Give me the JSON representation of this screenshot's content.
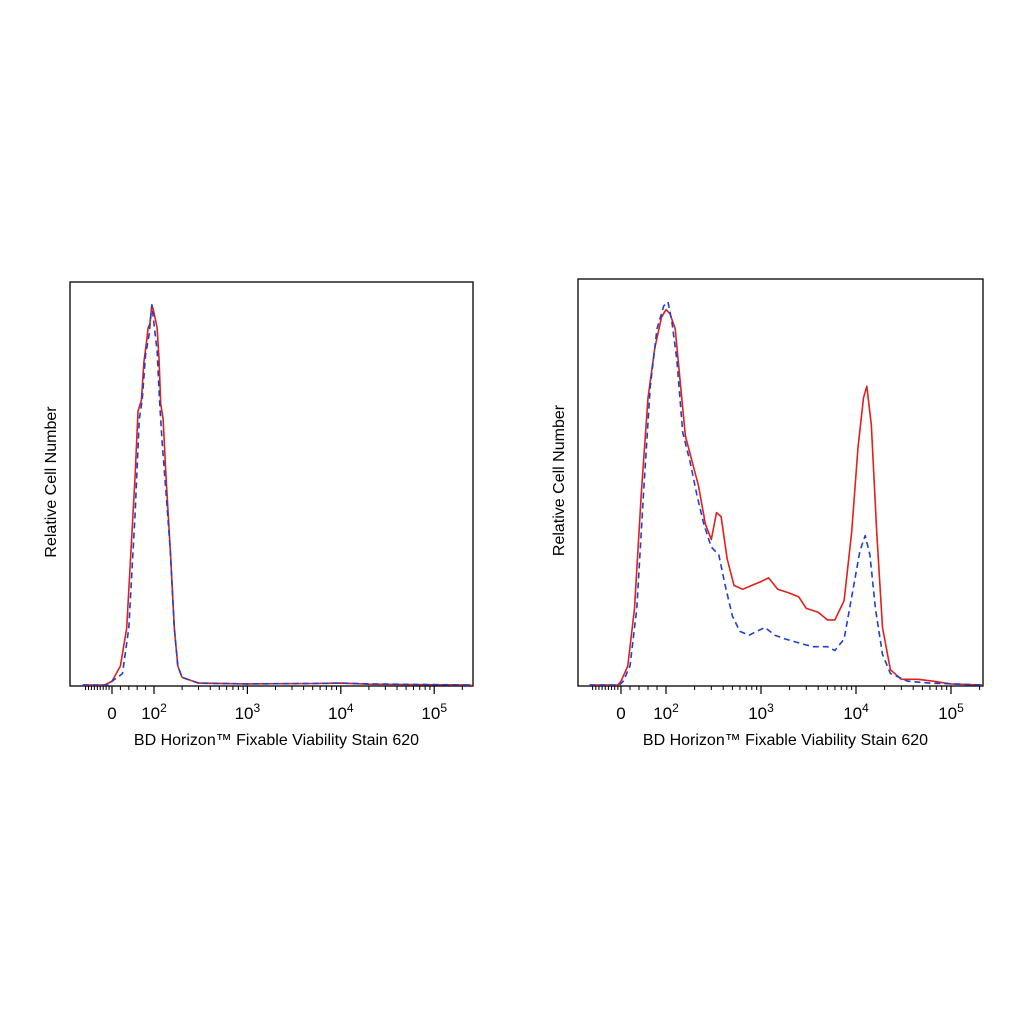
{
  "chart_data": [
    {
      "type": "line",
      "title": "",
      "xlabel": "BD Horizon™ Fixable Viability Stain 620",
      "ylabel": "Relative Cell Number",
      "x_scale": "biexponential",
      "xlim": [
        -200,
        250000
      ],
      "ylim": [
        0,
        1
      ],
      "grid": false,
      "legend": "none",
      "x_tick_labels": [
        {
          "value": 0,
          "base": "0",
          "exp": ""
        },
        {
          "value": 100,
          "base": "10",
          "exp": "2"
        },
        {
          "value": 1000,
          "base": "10",
          "exp": "3"
        },
        {
          "value": 10000,
          "base": "10",
          "exp": "4"
        },
        {
          "value": 100000,
          "base": "10",
          "exp": "5"
        }
      ],
      "series": [
        {
          "color": "#e0201b",
          "dash": "solid",
          "points": [
            [
              -200,
              0
            ],
            [
              -50,
              0
            ],
            [
              0,
              0.01
            ],
            [
              20,
              0.05
            ],
            [
              35,
              0.15
            ],
            [
              45,
              0.35
            ],
            [
              55,
              0.55
            ],
            [
              62,
              0.72
            ],
            [
              70,
              0.75
            ],
            [
              76,
              0.85
            ],
            [
              82,
              0.9
            ],
            [
              86,
              0.94
            ],
            [
              90,
              0.95
            ],
            [
              95,
              1.0
            ],
            [
              100,
              0.98
            ],
            [
              108,
              0.94
            ],
            [
              113,
              0.86
            ],
            [
              118,
              0.74
            ],
            [
              125,
              0.7
            ],
            [
              135,
              0.54
            ],
            [
              150,
              0.35
            ],
            [
              165,
              0.15
            ],
            [
              180,
              0.05
            ],
            [
              200,
              0.02
            ],
            [
              300,
              0.005
            ],
            [
              1000,
              0.003
            ],
            [
              5000,
              0.004
            ],
            [
              10000,
              0.005
            ],
            [
              20000,
              0.002
            ],
            [
              250000,
              0
            ]
          ]
        },
        {
          "color": "#1f3fcf",
          "dash": "dashed",
          "points": [
            [
              -200,
              0
            ],
            [
              -20,
              0
            ],
            [
              0,
              0.01
            ],
            [
              25,
              0.03
            ],
            [
              40,
              0.15
            ],
            [
              55,
              0.45
            ],
            [
              65,
              0.7
            ],
            [
              72,
              0.75
            ],
            [
              80,
              0.87
            ],
            [
              88,
              0.92
            ],
            [
              95,
              1.0
            ],
            [
              100,
              0.95
            ],
            [
              108,
              0.88
            ],
            [
              114,
              0.76
            ],
            [
              122,
              0.64
            ],
            [
              135,
              0.5
            ],
            [
              150,
              0.35
            ],
            [
              165,
              0.15
            ],
            [
              180,
              0.05
            ],
            [
              200,
              0.02
            ],
            [
              300,
              0.005
            ],
            [
              1000,
              0.003
            ],
            [
              5000,
              0.004
            ],
            [
              10000,
              0.005
            ],
            [
              20000,
              0.003
            ],
            [
              250000,
              0
            ]
          ]
        }
      ]
    },
    {
      "type": "line",
      "title": "",
      "xlabel": "BD Horizon™ Fixable Viability Stain 620",
      "ylabel": "Relative Cell Number",
      "x_scale": "biexponential",
      "xlim": [
        -200,
        250000
      ],
      "ylim": [
        0,
        1
      ],
      "grid": false,
      "legend": "none",
      "x_tick_labels": [
        {
          "value": 0,
          "base": "0",
          "exp": ""
        },
        {
          "value": 100,
          "base": "10",
          "exp": "2"
        },
        {
          "value": 1000,
          "base": "10",
          "exp": "3"
        },
        {
          "value": 10000,
          "base": "10",
          "exp": "4"
        },
        {
          "value": 100000,
          "base": "10",
          "exp": "5"
        }
      ],
      "series": [
        {
          "color": "#e0201b",
          "dash": "solid",
          "points": [
            [
              -200,
              0
            ],
            [
              -20,
              0
            ],
            [
              0,
              0.01
            ],
            [
              15,
              0.05
            ],
            [
              30,
              0.2
            ],
            [
              45,
              0.5
            ],
            [
              60,
              0.75
            ],
            [
              75,
              0.88
            ],
            [
              90,
              0.96
            ],
            [
              100,
              0.98
            ],
            [
              110,
              0.97
            ],
            [
              125,
              0.93
            ],
            [
              140,
              0.8
            ],
            [
              160,
              0.65
            ],
            [
              190,
              0.58
            ],
            [
              220,
              0.52
            ],
            [
              260,
              0.42
            ],
            [
              300,
              0.38
            ],
            [
              340,
              0.45
            ],
            [
              380,
              0.44
            ],
            [
              440,
              0.33
            ],
            [
              520,
              0.26
            ],
            [
              640,
              0.25
            ],
            [
              800,
              0.26
            ],
            [
              1000,
              0.27
            ],
            [
              1200,
              0.28
            ],
            [
              1500,
              0.25
            ],
            [
              2000,
              0.24
            ],
            [
              2500,
              0.23
            ],
            [
              3000,
              0.2
            ],
            [
              4000,
              0.19
            ],
            [
              5000,
              0.17
            ],
            [
              6000,
              0.17
            ],
            [
              7500,
              0.22
            ],
            [
              9000,
              0.4
            ],
            [
              10500,
              0.62
            ],
            [
              12000,
              0.75
            ],
            [
              13000,
              0.78
            ],
            [
              14500,
              0.68
            ],
            [
              16500,
              0.4
            ],
            [
              19000,
              0.15
            ],
            [
              23000,
              0.04
            ],
            [
              30000,
              0.015
            ],
            [
              45000,
              0.015
            ],
            [
              65000,
              0.01
            ],
            [
              100000,
              0.003
            ],
            [
              250000,
              0
            ]
          ]
        },
        {
          "color": "#1f3fcf",
          "dash": "dashed",
          "points": [
            [
              -200,
              0
            ],
            [
              -10,
              0
            ],
            [
              5,
              0.01
            ],
            [
              20,
              0.05
            ],
            [
              35,
              0.2
            ],
            [
              50,
              0.5
            ],
            [
              65,
              0.78
            ],
            [
              80,
              0.93
            ],
            [
              95,
              0.99
            ],
            [
              105,
              1.0
            ],
            [
              115,
              0.95
            ],
            [
              130,
              0.85
            ],
            [
              150,
              0.66
            ],
            [
              180,
              0.58
            ],
            [
              210,
              0.5
            ],
            [
              250,
              0.42
            ],
            [
              300,
              0.36
            ],
            [
              360,
              0.34
            ],
            [
              420,
              0.26
            ],
            [
              500,
              0.18
            ],
            [
              600,
              0.14
            ],
            [
              750,
              0.13
            ],
            [
              900,
              0.14
            ],
            [
              1100,
              0.15
            ],
            [
              1400,
              0.13
            ],
            [
              1800,
              0.12
            ],
            [
              2500,
              0.11
            ],
            [
              3500,
              0.1
            ],
            [
              5000,
              0.1
            ],
            [
              6000,
              0.09
            ],
            [
              7500,
              0.12
            ],
            [
              9000,
              0.23
            ],
            [
              11000,
              0.35
            ],
            [
              12500,
              0.39
            ],
            [
              14000,
              0.34
            ],
            [
              16000,
              0.2
            ],
            [
              19000,
              0.08
            ],
            [
              23000,
              0.03
            ],
            [
              35000,
              0.01
            ],
            [
              60000,
              0.005
            ],
            [
              250000,
              0
            ]
          ]
        }
      ]
    }
  ]
}
